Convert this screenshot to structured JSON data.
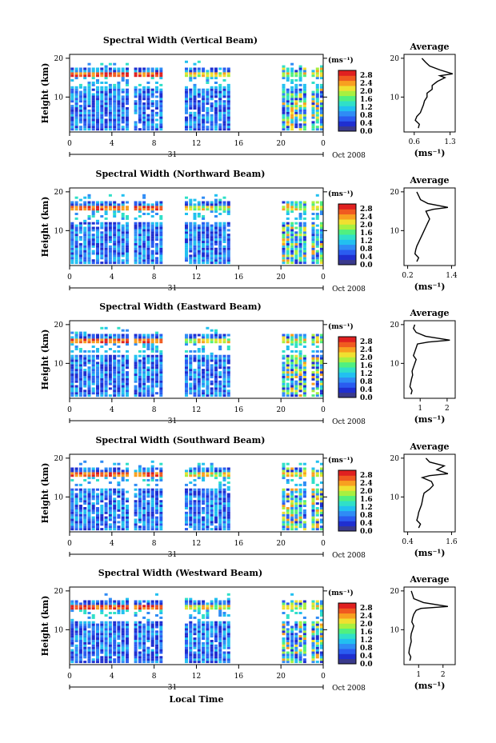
{
  "xlabel": "Local Time",
  "ylabel": "Height (km)",
  "date_label": "Oct 2008",
  "day_label": "31",
  "x_ticks": [
    "0",
    "4",
    "8",
    "12",
    "16",
    "20",
    "0"
  ],
  "y_ticks": [
    "20",
    "10"
  ],
  "colorbar": {
    "unit": "(ms⁻¹)",
    "ticks": [
      "2.8",
      "2.4",
      "2.0",
      "1.6",
      "1.2",
      "0.8",
      "0.4",
      "0.0"
    ],
    "colors": [
      "#3a3a8c",
      "#1f2fd0",
      "#2a5cf0",
      "#2f8cf5",
      "#22c0f0",
      "#30e0c8",
      "#50f080",
      "#a8f040",
      "#f0e030",
      "#f8a020",
      "#f05a20",
      "#e02020"
    ]
  },
  "avg_title": "Average",
  "avg_xlabel": "(ms⁻¹)",
  "colors": {
    "line": "#000000"
  },
  "chart_data": [
    {
      "type": "heatmap",
      "title": "Spectral Width (Vertical Beam)",
      "xlim": [
        0,
        24
      ],
      "ylim": [
        1,
        21
      ],
      "data_gaps_hours": [
        [
          8.7,
          10.8
        ],
        [
          15.3,
          20.0
        ]
      ],
      "avg_profile": {
        "xticks": [
          "0.6",
          "1.3"
        ],
        "xlim": [
          0.4,
          1.4
        ],
        "heights": [
          20,
          19,
          18,
          17,
          16,
          15.5,
          15,
          14,
          13,
          12,
          11,
          10,
          9,
          8,
          7,
          6,
          5,
          4,
          3,
          2
        ],
        "values": [
          0.75,
          0.82,
          0.9,
          1.1,
          1.35,
          1.1,
          1.2,
          1.05,
          0.95,
          0.95,
          0.85,
          0.85,
          0.8,
          0.78,
          0.75,
          0.72,
          0.65,
          0.62,
          0.7,
          0.68
        ]
      }
    },
    {
      "type": "heatmap",
      "title": "Spectral Width (Northward Beam)",
      "xlim": [
        0,
        24
      ],
      "ylim": [
        1,
        21
      ],
      "data_gaps_hours": [
        [
          8.7,
          10.8
        ],
        [
          15.3,
          20.0
        ]
      ],
      "avg_profile": {
        "xticks": [
          "0.2",
          "1.4"
        ],
        "xlim": [
          0.1,
          1.5
        ],
        "heights": [
          20,
          19,
          18,
          17,
          16,
          15.5,
          15,
          14,
          13,
          12,
          11,
          10,
          9,
          8,
          7,
          6,
          5,
          4,
          3,
          2
        ],
        "values": [
          0.45,
          0.5,
          0.55,
          0.75,
          1.3,
          0.9,
          0.7,
          0.75,
          0.8,
          0.75,
          0.7,
          0.65,
          0.6,
          0.55,
          0.5,
          0.45,
          0.42,
          0.4,
          0.5,
          0.45
        ]
      }
    },
    {
      "type": "heatmap",
      "title": "Spectral Width (Eastward Beam)",
      "xlim": [
        0,
        24
      ],
      "ylim": [
        1,
        21
      ],
      "data_gaps_hours": [
        [
          8.7,
          10.8
        ],
        [
          15.3,
          20.0
        ]
      ],
      "avg_profile": {
        "xticks": [
          "1",
          "2"
        ],
        "xlim": [
          0.4,
          2.3
        ],
        "heights": [
          20,
          19,
          18,
          17,
          16,
          15.5,
          15,
          14,
          13,
          12,
          11,
          10,
          9,
          8,
          7,
          6,
          5,
          4,
          3,
          2
        ],
        "values": [
          0.8,
          0.75,
          0.85,
          1.2,
          2.1,
          1.3,
          0.9,
          0.85,
          0.8,
          0.75,
          0.85,
          0.8,
          0.75,
          0.7,
          0.72,
          0.68,
          0.65,
          0.62,
          0.7,
          0.66
        ]
      }
    },
    {
      "type": "heatmap",
      "title": "Spectral Width (Southward Beam)",
      "xlim": [
        0,
        24
      ],
      "ylim": [
        1,
        21
      ],
      "data_gaps_hours": [
        [
          8.7,
          10.8
        ],
        [
          15.3,
          20.0
        ]
      ],
      "avg_profile": {
        "xticks": [
          "0.4",
          "1.6"
        ],
        "xlim": [
          0.3,
          1.7
        ],
        "heights": [
          20,
          19,
          18,
          17,
          16,
          15.5,
          15,
          14,
          13,
          12,
          11,
          10,
          9,
          8,
          7,
          6,
          5,
          4,
          3,
          2
        ],
        "values": [
          0.9,
          1.0,
          1.4,
          1.2,
          1.5,
          1.0,
          0.8,
          1.05,
          1.1,
          1.0,
          0.85,
          0.82,
          0.8,
          0.78,
          0.74,
          0.7,
          0.68,
          0.65,
          0.75,
          0.7
        ]
      }
    },
    {
      "type": "heatmap",
      "title": "Spectral Width (Westward Beam)",
      "xlim": [
        0,
        24
      ],
      "ylim": [
        1,
        21
      ],
      "data_gaps_hours": [
        [
          8.7,
          10.8
        ],
        [
          15.3,
          20.0
        ]
      ],
      "avg_profile": {
        "xticks": [
          "1",
          "2"
        ],
        "xlim": [
          0.4,
          2.5
        ],
        "heights": [
          20,
          19,
          18,
          17,
          16,
          15.5,
          15,
          14,
          13,
          12,
          11,
          10,
          9,
          8,
          7,
          6,
          5,
          4,
          3,
          2
        ],
        "values": [
          0.7,
          0.75,
          0.8,
          1.2,
          2.2,
          1.1,
          0.9,
          0.8,
          0.75,
          0.72,
          0.8,
          0.75,
          0.7,
          0.68,
          0.7,
          0.66,
          0.62,
          0.6,
          0.68,
          0.64
        ]
      }
    }
  ]
}
